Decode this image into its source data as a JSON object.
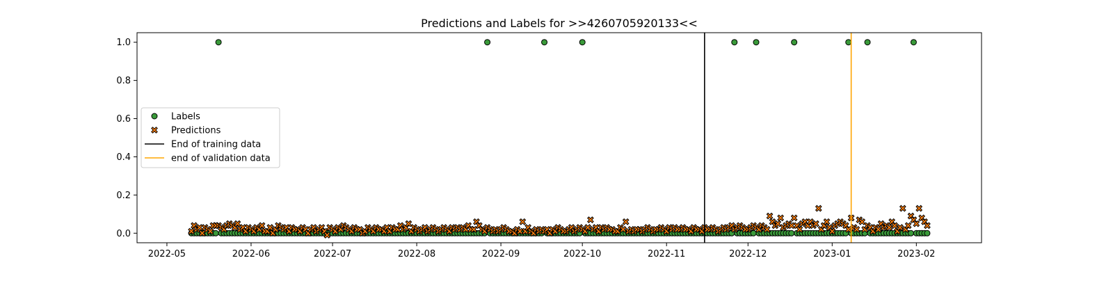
{
  "chart_data": {
    "type": "scatter",
    "title": "Predictions and Labels for >>4260705920133<<",
    "xlabel": "",
    "ylabel": "",
    "x_range": [
      "2022-04-20",
      "2023-02-25"
    ],
    "ylim": [
      -0.05,
      1.05
    ],
    "x_ticks": [
      "2022-05",
      "2022-06",
      "2022-07",
      "2022-08",
      "2022-09",
      "2022-10",
      "2022-11",
      "2022-12",
      "2023-01",
      "2023-02"
    ],
    "x_tick_dates": [
      "2022-05-01",
      "2022-06-01",
      "2022-07-01",
      "2022-08-01",
      "2022-09-01",
      "2022-10-01",
      "2022-11-01",
      "2022-12-01",
      "2023-01-01",
      "2023-02-01"
    ],
    "y_ticks": [
      "0.0",
      "0.2",
      "0.4",
      "0.6",
      "0.8",
      "1.0"
    ],
    "y_tick_values": [
      0.0,
      0.2,
      0.4,
      0.6,
      0.8,
      1.0
    ],
    "grid": false,
    "legend_position": "center-left",
    "date_start": "2022-05-10",
    "date_end": "2023-02-05",
    "label_positive_dates": [
      "2022-05-20",
      "2022-08-27",
      "2022-09-17",
      "2022-10-01",
      "2022-11-26",
      "2022-12-04",
      "2022-12-18",
      "2023-01-07",
      "2023-01-14",
      "2023-01-31"
    ],
    "prediction_values": [
      0.01,
      0.04,
      0.02,
      0.03,
      0.0,
      0.03,
      0.02,
      0.01,
      0.04,
      0.04,
      0.04,
      0.03,
      0.02,
      0.04,
      0.05,
      0.04,
      0.03,
      0.05,
      0.02,
      0.03,
      0.01,
      0.03,
      0.02,
      0.01,
      0.03,
      0.02,
      0.04,
      0.01,
      0.01,
      0.03,
      0.0,
      0.02,
      0.04,
      0.03,
      0.02,
      0.03,
      0.01,
      0.03,
      0.02,
      0.02,
      0.01,
      0.03,
      0.02,
      0.0,
      0.02,
      0.03,
      0.01,
      0.02,
      0.03,
      0.01,
      -0.01,
      0.03,
      0.02,
      0.01,
      0.03,
      0.02,
      0.04,
      0.03,
      0.02,
      0.01,
      0.03,
      0.02,
      0.02,
      0.0,
      0.01,
      0.03,
      0.02,
      0.01,
      0.03,
      0.02,
      0.02,
      0.01,
      0.03,
      0.01,
      0.03,
      0.02,
      0.02,
      0.04,
      0.02,
      0.03,
      0.05,
      0.01,
      0.03,
      0.02,
      0.01,
      0.02,
      0.03,
      0.01,
      0.02,
      0.03,
      0.02,
      0.01,
      0.02,
      0.03,
      0.02,
      0.01,
      0.03,
      0.02,
      0.03,
      0.02,
      0.03,
      0.02,
      0.04,
      0.02,
      0.02,
      0.06,
      0.04,
      0.02,
      0.01,
      0.03,
      0.02,
      0.01,
      0.02,
      0.01,
      0.02,
      0.03,
      0.02,
      0.01,
      0.01,
      0.0,
      0.02,
      0.01,
      0.06,
      0.01,
      0.03,
      0.01,
      0.0,
      0.02,
      0.01,
      0.02,
      0.01,
      0.02,
      0.0,
      0.02,
      0.01,
      0.03,
      0.02,
      0.01,
      0.01,
      0.02,
      0.03,
      0.01,
      0.02,
      0.03,
      0.02,
      0.01,
      0.03,
      0.07,
      0.02,
      0.03,
      0.01,
      0.03,
      0.02,
      0.03,
      0.02,
      0.02,
      0.01,
      0.01,
      0.03,
      0.02,
      0.06,
      0.01,
      0.02,
      0.01,
      0.02,
      0.02,
      0.01,
      0.02,
      0.03,
      0.02,
      0.01,
      0.02,
      0.02,
      0.03,
      0.02,
      0.01,
      0.03,
      0.02,
      0.03,
      0.02,
      0.02,
      0.03,
      0.02,
      0.02,
      0.01,
      0.03,
      0.02,
      0.02,
      0.01,
      0.03,
      0.02,
      0.02,
      0.03,
      0.02,
      0.01,
      0.02,
      0.03,
      0.02,
      0.03,
      0.04,
      0.02,
      0.03,
      0.04,
      0.03,
      0.02,
      0.02,
      0.03,
      0.04,
      0.03,
      0.02,
      0.04,
      0.03,
      0.02,
      0.09,
      0.06,
      0.04,
      0.05,
      0.08,
      0.03,
      0.04,
      0.05,
      0.04,
      0.08,
      0.04,
      0.02,
      0.05,
      0.06,
      0.04,
      0.06,
      0.04,
      0.05,
      0.13,
      0.02,
      0.04,
      0.06,
      0.03,
      0.01,
      0.04,
      0.05,
      0.06,
      0.05,
      0.04,
      0.02,
      0.08,
      0.03,
      0.02,
      0.07,
      0.06,
      0.02,
      0.04,
      0.03,
      0.01,
      0.03,
      0.02,
      0.05,
      0.03,
      0.04,
      0.03,
      0.06,
      0.04,
      0.01,
      0.03,
      0.13,
      0.02,
      0.04,
      0.09,
      0.07,
      0.05,
      0.13,
      0.08,
      0.06,
      0.04,
      0.1,
      0.09,
      0.07,
      0.06,
      0.03,
      0.12,
      0.05,
      0.15,
      0.06,
      0.05,
      0.08,
      0.05,
      0.04,
      0.02,
      0.07,
      0.09,
      0.06,
      0.03,
      0.04,
      0.09,
      0.06,
      0.05,
      0.04,
      0.02,
      0.17,
      0.03,
      0.04,
      0.05,
      0.02,
      0.06
    ],
    "vertical_lines": [
      {
        "date": "2022-11-15",
        "color": "#000000",
        "label": "End of training data"
      },
      {
        "date": "2023-01-08",
        "color": "#ffa500",
        "label": "end of validation data"
      }
    ],
    "series": [
      {
        "name": "Labels",
        "marker": "circle",
        "color": "#2ca02c"
      },
      {
        "name": "Predictions",
        "marker": "x",
        "color": "#ff7f0e"
      }
    ],
    "colors": {
      "label_fill": "#3a9a3a",
      "prediction_fill": "#ff7f0e",
      "edge": "#000000",
      "train_line": "#000000",
      "valid_line": "#ffa500"
    }
  }
}
